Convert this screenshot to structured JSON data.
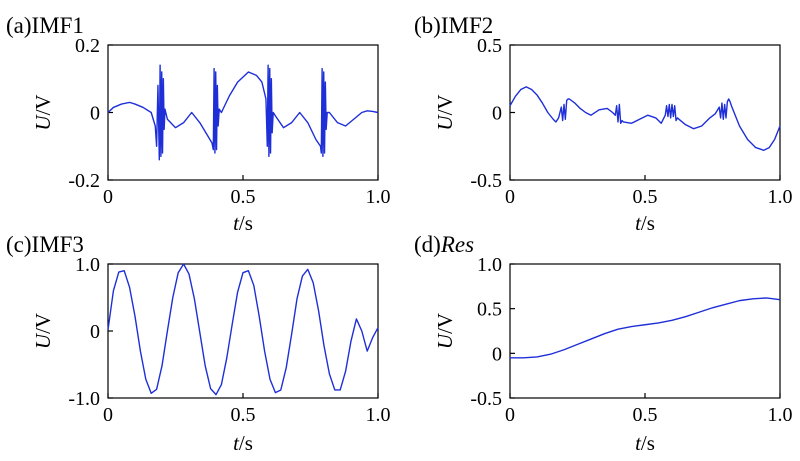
{
  "chart_data": [
    {
      "type": "line",
      "label_prefix": "(a)",
      "label_name": "IMF1",
      "label_italic": false,
      "xlabel_var": "t",
      "xlabel_unit": "/s",
      "ylabel_var": "U",
      "ylabel_unit": "/V",
      "xlim": [
        0,
        1.0
      ],
      "ylim": [
        -0.2,
        0.2
      ],
      "xticks": [
        0,
        0.5,
        1.0
      ],
      "xtick_labels": [
        "0",
        "0.5",
        "1.0"
      ],
      "yticks": [
        -0.2,
        0,
        0.2
      ],
      "ytick_labels": [
        "-0.2",
        "0",
        "0.2"
      ],
      "color": "#1f2fd8",
      "x": [
        0,
        0.02,
        0.05,
        0.08,
        0.1,
        0.13,
        0.16,
        0.175,
        0.18,
        0.185,
        0.19,
        0.193,
        0.196,
        0.199,
        0.202,
        0.205,
        0.208,
        0.211,
        0.22,
        0.25,
        0.28,
        0.31,
        0.34,
        0.37,
        0.385,
        0.39,
        0.393,
        0.396,
        0.399,
        0.402,
        0.405,
        0.408,
        0.412,
        0.42,
        0.45,
        0.48,
        0.52,
        0.55,
        0.57,
        0.585,
        0.59,
        0.593,
        0.596,
        0.599,
        0.602,
        0.605,
        0.608,
        0.612,
        0.62,
        0.65,
        0.68,
        0.71,
        0.74,
        0.77,
        0.787,
        0.79,
        0.793,
        0.796,
        0.799,
        0.802,
        0.805,
        0.808,
        0.812,
        0.82,
        0.85,
        0.88,
        0.91,
        0.94,
        0.96,
        0.98,
        1.0
      ],
      "y": [
        0.0,
        0.015,
        0.025,
        0.03,
        0.025,
        0.015,
        0.0,
        -0.04,
        -0.1,
        0.08,
        -0.14,
        0.14,
        -0.13,
        0.12,
        -0.12,
        0.1,
        -0.05,
        0.01,
        -0.02,
        -0.045,
        -0.03,
        0.0,
        -0.03,
        -0.07,
        -0.09,
        -0.11,
        0.13,
        -0.12,
        0.12,
        -0.11,
        0.08,
        -0.04,
        0.01,
        0.0,
        0.05,
        0.09,
        0.12,
        0.11,
        0.09,
        0.04,
        -0.1,
        0.14,
        -0.13,
        0.13,
        -0.12,
        0.1,
        -0.06,
        0.0,
        -0.01,
        -0.045,
        -0.03,
        0.0,
        -0.03,
        -0.08,
        -0.1,
        -0.12,
        0.13,
        -0.13,
        0.12,
        -0.12,
        0.09,
        -0.05,
        0.0,
        0.0,
        -0.03,
        -0.04,
        -0.02,
        0.0,
        0.005,
        0.003,
        0.0
      ]
    },
    {
      "type": "line",
      "label_prefix": "(b)",
      "label_name": "IMF2",
      "label_italic": false,
      "xlabel_var": "t",
      "xlabel_unit": "/s",
      "ylabel_var": "U",
      "ylabel_unit": "/V",
      "xlim": [
        0,
        1.0
      ],
      "ylim": [
        -0.5,
        0.5
      ],
      "xticks": [
        0,
        0.5,
        1.0
      ],
      "xtick_labels": [
        "0",
        "0.5",
        "1.0"
      ],
      "yticks": [
        -0.5,
        0,
        0.5
      ],
      "ytick_labels": [
        "-0.5",
        "0",
        "0.5"
      ],
      "color": "#1f2fd8",
      "x": [
        0,
        0.02,
        0.04,
        0.06,
        0.08,
        0.1,
        0.12,
        0.14,
        0.16,
        0.17,
        0.18,
        0.19,
        0.195,
        0.2,
        0.205,
        0.21,
        0.215,
        0.22,
        0.24,
        0.26,
        0.28,
        0.3,
        0.33,
        0.36,
        0.38,
        0.39,
        0.395,
        0.4,
        0.405,
        0.41,
        0.415,
        0.42,
        0.45,
        0.48,
        0.51,
        0.54,
        0.56,
        0.575,
        0.58,
        0.585,
        0.59,
        0.595,
        0.6,
        0.605,
        0.61,
        0.615,
        0.62,
        0.65,
        0.68,
        0.71,
        0.74,
        0.76,
        0.775,
        0.78,
        0.785,
        0.79,
        0.795,
        0.8,
        0.805,
        0.81,
        0.815,
        0.82,
        0.85,
        0.88,
        0.91,
        0.94,
        0.96,
        0.98,
        1.0
      ],
      "y": [
        0.05,
        0.12,
        0.17,
        0.19,
        0.17,
        0.13,
        0.07,
        0.0,
        -0.05,
        -0.07,
        -0.04,
        0.04,
        -0.06,
        0.06,
        -0.05,
        0.09,
        0.1,
        0.1,
        0.07,
        0.03,
        0.0,
        -0.02,
        0.02,
        0.03,
        0.0,
        -0.02,
        0.05,
        -0.07,
        0.06,
        -0.08,
        -0.06,
        -0.07,
        -0.08,
        -0.05,
        -0.02,
        -0.04,
        -0.08,
        -0.02,
        0.05,
        -0.03,
        0.06,
        -0.04,
        0.06,
        -0.03,
        0.05,
        -0.06,
        -0.04,
        -0.09,
        -0.12,
        -0.1,
        -0.04,
        -0.01,
        0.04,
        -0.04,
        0.07,
        -0.05,
        0.06,
        -0.04,
        0.08,
        0.1,
        0.08,
        0.05,
        -0.1,
        -0.2,
        -0.26,
        -0.28,
        -0.26,
        -0.2,
        -0.1
      ]
    },
    {
      "type": "line",
      "label_prefix": "(c)",
      "label_name": "IMF3",
      "label_italic": false,
      "xlabel_var": "t",
      "xlabel_unit": "/s",
      "ylabel_var": "U",
      "ylabel_unit": "/V",
      "xlim": [
        0,
        1.0
      ],
      "ylim": [
        -1.0,
        1.0
      ],
      "xticks": [
        0,
        0.5,
        1.0
      ],
      "xtick_labels": [
        "0",
        "0.5",
        "1.0"
      ],
      "yticks": [
        -1.0,
        0,
        1.0
      ],
      "ytick_labels": [
        "-1.0",
        "0",
        "1.0"
      ],
      "color": "#1f2fd8",
      "x": [
        0,
        0.02,
        0.04,
        0.06,
        0.08,
        0.1,
        0.12,
        0.14,
        0.16,
        0.18,
        0.2,
        0.22,
        0.24,
        0.26,
        0.28,
        0.3,
        0.32,
        0.34,
        0.36,
        0.38,
        0.4,
        0.42,
        0.44,
        0.46,
        0.48,
        0.5,
        0.52,
        0.54,
        0.56,
        0.58,
        0.6,
        0.62,
        0.64,
        0.66,
        0.68,
        0.7,
        0.72,
        0.74,
        0.76,
        0.78,
        0.8,
        0.82,
        0.84,
        0.86,
        0.88,
        0.9,
        0.92,
        0.94,
        0.96,
        0.98,
        1.0
      ],
      "y": [
        0.02,
        0.6,
        0.88,
        0.9,
        0.65,
        0.22,
        -0.3,
        -0.72,
        -0.93,
        -0.87,
        -0.52,
        0.0,
        0.5,
        0.87,
        1.0,
        0.85,
        0.48,
        -0.02,
        -0.52,
        -0.86,
        -0.95,
        -0.8,
        -0.4,
        0.1,
        0.58,
        0.87,
        0.9,
        0.68,
        0.22,
        -0.3,
        -0.72,
        -0.92,
        -0.88,
        -0.55,
        -0.05,
        0.48,
        0.82,
        0.92,
        0.72,
        0.3,
        -0.22,
        -0.64,
        -0.88,
        -0.88,
        -0.6,
        -0.15,
        0.18,
        0.0,
        -0.3,
        -0.1,
        0.05
      ]
    },
    {
      "type": "line",
      "label_prefix": "(d)",
      "label_name": "Res",
      "label_italic": true,
      "xlabel_var": "t",
      "xlabel_unit": "/s",
      "ylabel_var": "U",
      "ylabel_unit": "/V",
      "xlim": [
        0,
        1.0
      ],
      "ylim": [
        -0.5,
        1.0
      ],
      "xticks": [
        0,
        0.5,
        1.0
      ],
      "xtick_labels": [
        "0",
        "0.5",
        "1.0"
      ],
      "yticks": [
        -0.5,
        0,
        0.5,
        1.0
      ],
      "ytick_labels": [
        "-0.5",
        "0",
        "0.5",
        "1.0"
      ],
      "color": "#1f2fd8",
      "x": [
        0,
        0.05,
        0.1,
        0.15,
        0.2,
        0.25,
        0.3,
        0.35,
        0.4,
        0.45,
        0.5,
        0.55,
        0.6,
        0.65,
        0.7,
        0.75,
        0.8,
        0.85,
        0.9,
        0.95,
        1.0
      ],
      "y": [
        -0.05,
        -0.05,
        -0.04,
        -0.01,
        0.04,
        0.1,
        0.16,
        0.22,
        0.27,
        0.3,
        0.32,
        0.34,
        0.37,
        0.41,
        0.46,
        0.51,
        0.55,
        0.59,
        0.61,
        0.62,
        0.6
      ]
    }
  ]
}
